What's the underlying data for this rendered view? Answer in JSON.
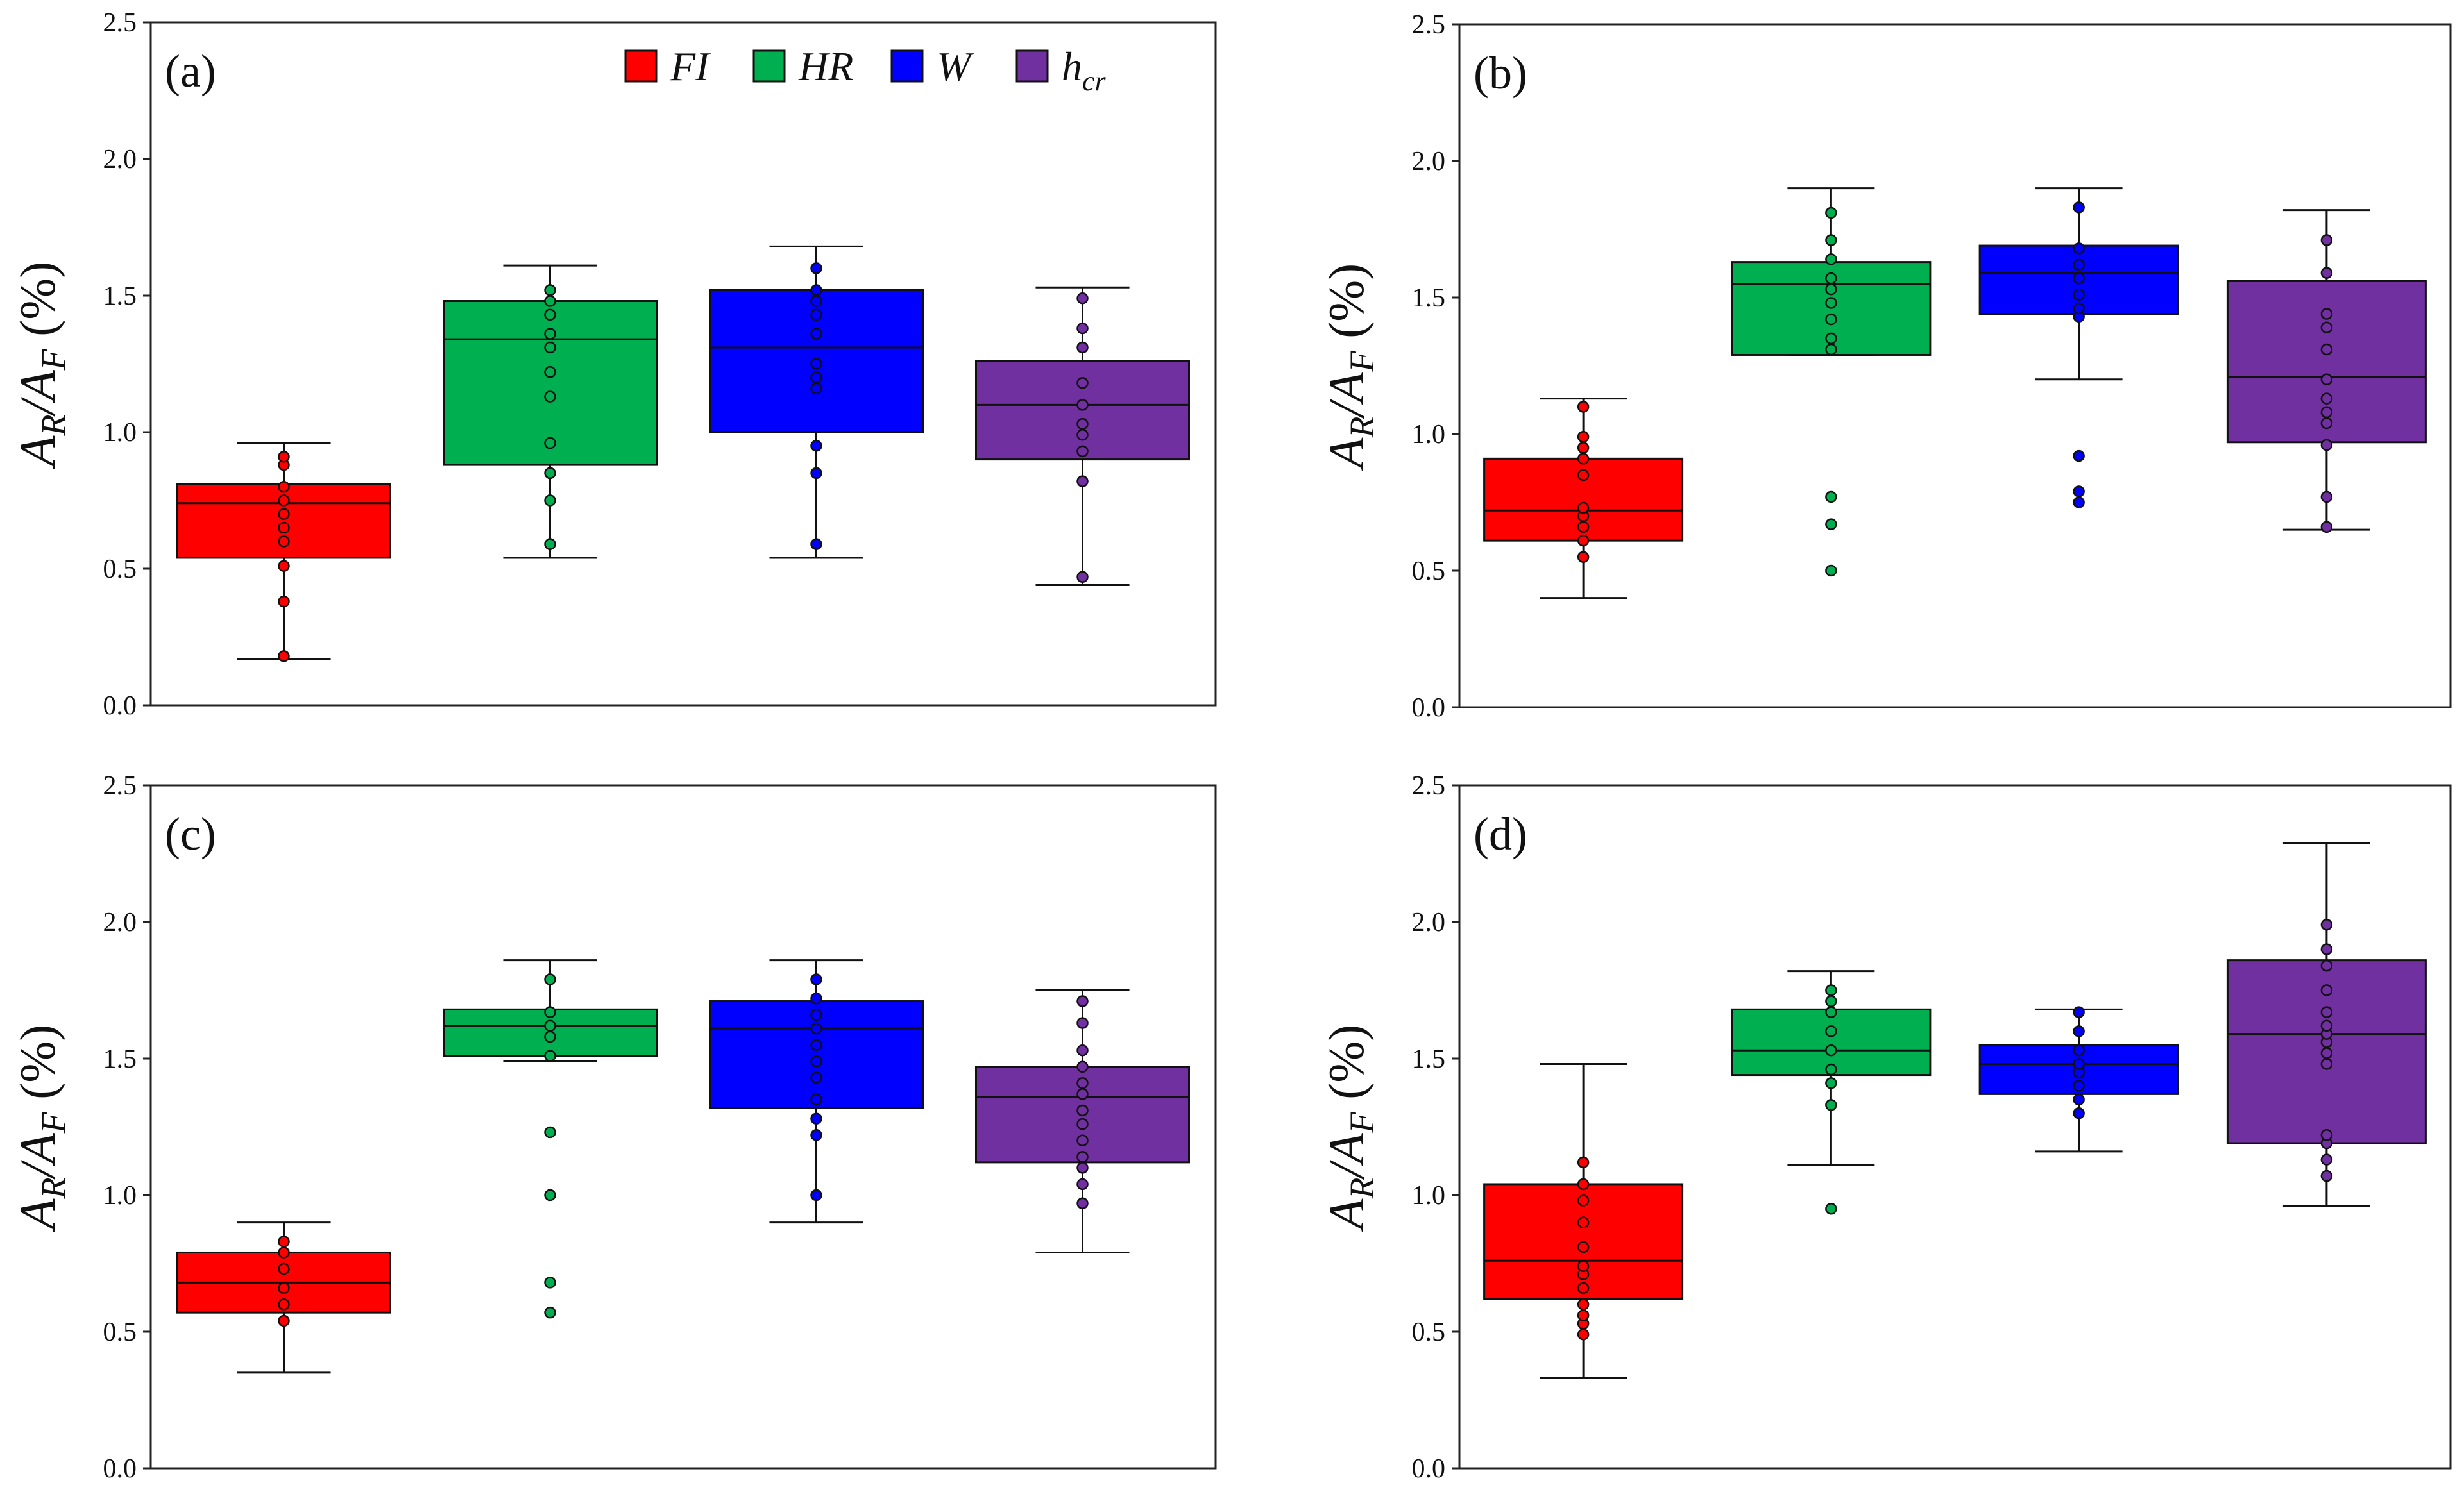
{
  "legend": {
    "entries": [
      {
        "key": "FI",
        "base": "FI",
        "sub": "",
        "color": "#ff0000"
      },
      {
        "key": "HR",
        "base": "HR",
        "sub": "",
        "color": "#00b050"
      },
      {
        "key": "W",
        "base": "W",
        "sub": "",
        "color": "#0000ff"
      },
      {
        "key": "hcr",
        "base": "h",
        "sub": "cr",
        "color": "#7030a0"
      }
    ]
  },
  "chart_data": [
    {
      "type": "box",
      "panel": "(a)",
      "ylabel": {
        "A1": "A",
        "s1": "R",
        "slash": "/",
        "A2": "A",
        "s2": "F",
        "unit": " (%)"
      },
      "ylim": [
        0,
        2.5
      ],
      "yticks": [
        "0.0",
        "0.5",
        "1.0",
        "1.5",
        "2.0",
        "2.5"
      ],
      "series": [
        {
          "name": "FI",
          "whisker_low": 0.17,
          "q1": 0.54,
          "median": 0.74,
          "q3": 0.81,
          "whisker_high": 0.96,
          "points": [
            0.18,
            0.38,
            0.51,
            0.6,
            0.65,
            0.7,
            0.75,
            0.8,
            0.88,
            0.91
          ],
          "outliers": []
        },
        {
          "name": "HR",
          "whisker_low": 0.54,
          "q1": 0.88,
          "median": 1.34,
          "q3": 1.48,
          "whisker_high": 1.61,
          "points": [
            0.59,
            0.75,
            0.85,
            0.96,
            1.13,
            1.22,
            1.31,
            1.36,
            1.43,
            1.48,
            1.52
          ],
          "outliers": []
        },
        {
          "name": "W",
          "whisker_low": 0.54,
          "q1": 1.0,
          "median": 1.31,
          "q3": 1.52,
          "whisker_high": 1.68,
          "points": [
            0.59,
            0.85,
            0.95,
            1.16,
            1.2,
            1.25,
            1.36,
            1.43,
            1.48,
            1.52,
            1.6
          ],
          "outliers": []
        },
        {
          "name": "hcr",
          "whisker_low": 0.44,
          "q1": 0.9,
          "median": 1.1,
          "q3": 1.26,
          "whisker_high": 1.53,
          "points": [
            0.47,
            0.82,
            0.93,
            0.99,
            1.03,
            1.1,
            1.18,
            1.31,
            1.38,
            1.49
          ],
          "outliers": []
        }
      ]
    },
    {
      "type": "box",
      "panel": "(b)",
      "ylabel": {
        "A1": "A",
        "s1": "R",
        "slash": "/",
        "A2": "A",
        "s2": "F",
        "unit": " (%)"
      },
      "ylim": [
        0,
        2.5
      ],
      "yticks": [
        "0.0",
        "0.5",
        "1.0",
        "1.5",
        "2.0",
        "2.5"
      ],
      "series": [
        {
          "name": "FI",
          "whisker_low": 0.4,
          "q1": 0.61,
          "median": 0.72,
          "q3": 0.91,
          "whisker_high": 1.13,
          "points": [
            0.55,
            0.61,
            0.66,
            0.7,
            0.73,
            0.85,
            0.91,
            0.95,
            0.99,
            1.1
          ],
          "outliers": []
        },
        {
          "name": "HR",
          "whisker_low": 1.29,
          "q1": 1.29,
          "median": 1.55,
          "q3": 1.63,
          "whisker_high": 1.9,
          "points": [
            1.31,
            1.35,
            1.42,
            1.48,
            1.53,
            1.57,
            1.64,
            1.71,
            1.81
          ],
          "outliers": [
            0.5,
            0.67,
            0.77
          ]
        },
        {
          "name": "W",
          "whisker_low": 1.2,
          "q1": 1.44,
          "median": 1.59,
          "q3": 1.69,
          "whisker_high": 1.9,
          "points": [
            1.43,
            1.46,
            1.51,
            1.57,
            1.62,
            1.68,
            1.83
          ],
          "outliers": [
            0.75,
            0.79,
            0.92
          ]
        },
        {
          "name": "hcr",
          "whisker_low": 0.65,
          "q1": 0.97,
          "median": 1.21,
          "q3": 1.56,
          "whisker_high": 1.82,
          "points": [
            0.66,
            0.77,
            0.96,
            1.04,
            1.08,
            1.13,
            1.2,
            1.31,
            1.39,
            1.44,
            1.59,
            1.71
          ],
          "outliers": []
        }
      ]
    },
    {
      "type": "box",
      "panel": "(c)",
      "ylabel": {
        "A1": "A",
        "s1": "R",
        "slash": "/",
        "A2": "A",
        "s2": "F",
        "unit": " (%)"
      },
      "ylim": [
        0,
        2.5
      ],
      "yticks": [
        "0.0",
        "0.5",
        "1.0",
        "1.5",
        "2.0",
        "2.5"
      ],
      "series": [
        {
          "name": "FI",
          "whisker_low": 0.35,
          "q1": 0.57,
          "median": 0.68,
          "q3": 0.79,
          "whisker_high": 0.9,
          "points": [
            0.54,
            0.6,
            0.66,
            0.73,
            0.79,
            0.83
          ],
          "outliers": []
        },
        {
          "name": "HR",
          "whisker_low": 1.49,
          "q1": 1.51,
          "median": 1.62,
          "q3": 1.68,
          "whisker_high": 1.86,
          "points": [
            1.51,
            1.58,
            1.62,
            1.67,
            1.79
          ],
          "outliers": [
            0.57,
            0.68,
            1.0,
            1.23
          ]
        },
        {
          "name": "W",
          "whisker_low": 0.9,
          "q1": 1.32,
          "median": 1.61,
          "q3": 1.71,
          "whisker_high": 1.86,
          "points": [
            1.0,
            1.22,
            1.28,
            1.35,
            1.43,
            1.49,
            1.55,
            1.61,
            1.66,
            1.72,
            1.79
          ],
          "outliers": []
        },
        {
          "name": "hcr",
          "whisker_low": 0.79,
          "q1": 1.12,
          "median": 1.36,
          "q3": 1.47,
          "whisker_high": 1.75,
          "points": [
            0.97,
            1.04,
            1.1,
            1.14,
            1.2,
            1.26,
            1.31,
            1.37,
            1.41,
            1.47,
            1.53,
            1.63,
            1.71
          ],
          "outliers": []
        }
      ]
    },
    {
      "type": "box",
      "panel": "(d)",
      "ylabel": {
        "A1": "A",
        "s1": "R",
        "slash": "/",
        "A2": "A",
        "s2": "F",
        "unit": " (%)"
      },
      "ylim": [
        0,
        2.5
      ],
      "yticks": [
        "0.0",
        "0.5",
        "1.0",
        "1.5",
        "2.0",
        "2.5"
      ],
      "series": [
        {
          "name": "FI",
          "whisker_low": 0.33,
          "q1": 0.62,
          "median": 0.76,
          "q3": 1.04,
          "whisker_high": 1.48,
          "points": [
            0.49,
            0.53,
            0.56,
            0.6,
            0.66,
            0.71,
            0.74,
            0.81,
            0.9,
            0.98,
            1.04,
            1.12
          ],
          "outliers": []
        },
        {
          "name": "HR",
          "whisker_low": 1.11,
          "q1": 1.44,
          "median": 1.53,
          "q3": 1.68,
          "whisker_high": 1.82,
          "points": [
            1.33,
            1.41,
            1.46,
            1.53,
            1.6,
            1.67,
            1.71,
            1.75
          ],
          "outliers": [
            0.95
          ]
        },
        {
          "name": "W",
          "whisker_low": 1.16,
          "q1": 1.37,
          "median": 1.48,
          "q3": 1.55,
          "whisker_high": 1.68,
          "points": [
            1.3,
            1.35,
            1.4,
            1.45,
            1.48,
            1.53,
            1.6,
            1.67
          ],
          "outliers": []
        },
        {
          "name": "hcr",
          "whisker_low": 0.96,
          "q1": 1.19,
          "median": 1.59,
          "q3": 1.86,
          "whisker_high": 2.29,
          "points": [
            1.07,
            1.13,
            1.19,
            1.22,
            1.48,
            1.52,
            1.56,
            1.59,
            1.62,
            1.67,
            1.75,
            1.84,
            1.9,
            1.99
          ],
          "outliers": []
        }
      ]
    }
  ]
}
